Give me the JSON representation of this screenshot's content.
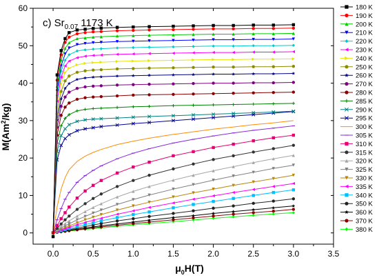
{
  "chart_data": {
    "type": "line",
    "annotation": {
      "prefix": "c) Sr",
      "subscript": "0.07",
      "suffix": " 1173 K"
    },
    "xlabel": {
      "pre": "μ",
      "sub": "0",
      "post": "H(T)"
    },
    "ylabel": {
      "pre": "M(Am",
      "sup": "2",
      "post": "/kg)"
    },
    "xlim": [
      -0.25,
      3.5
    ],
    "ylim": [
      -3,
      60
    ],
    "xticks": [
      "0.0",
      "0.5",
      "1.0",
      "1.5",
      "2.0",
      "2.5",
      "3.0",
      "3.5"
    ],
    "yticks": [
      "0",
      "10",
      "20",
      "30",
      "40",
      "50",
      "60"
    ],
    "legend_position": "right-outside",
    "x": [
      0,
      0.05,
      0.1,
      0.15,
      0.2,
      0.3,
      0.4,
      0.5,
      0.6,
      0.8,
      1.0,
      1.2,
      1.5,
      1.75,
      2.0,
      2.25,
      2.5,
      2.75,
      3.0
    ],
    "series": [
      {
        "name": "180 K",
        "color": "#000000",
        "marker": "square",
        "values": [
          -1,
          42.2,
          48.7,
          51.9,
          53.5,
          54.2,
          54.4,
          54.6,
          54.7,
          54.9,
          55.0,
          55.1,
          55.2,
          55.3,
          55.4,
          55.4,
          55.5,
          55.5,
          55.6
        ]
      },
      {
        "name": "190 K",
        "color": "#ff0000",
        "marker": "circle",
        "values": [
          0,
          40.8,
          47.6,
          50.9,
          52.3,
          53.2,
          53.5,
          53.7,
          53.8,
          54.0,
          54.1,
          54.2,
          54.3,
          54.4,
          54.5,
          54.5,
          54.6,
          54.6,
          54.7
        ]
      },
      {
        "name": "200 K",
        "color": "#00cc00",
        "marker": "triangle-up",
        "values": [
          0,
          39.2,
          46.2,
          49.3,
          50.8,
          51.9,
          52.1,
          52.3,
          52.4,
          52.6,
          52.7,
          52.8,
          52.9,
          53.0,
          53.1,
          53.1,
          53.2,
          53.2,
          53.3
        ]
      },
      {
        "name": "210 K",
        "color": "#0000ff",
        "marker": "triangle-down",
        "values": [
          0,
          37.9,
          44.6,
          47.8,
          49.4,
          50.3,
          50.6,
          50.8,
          50.9,
          51.1,
          51.2,
          51.3,
          51.4,
          51.5,
          51.6,
          51.6,
          51.7,
          51.7,
          51.8
        ]
      },
      {
        "name": "220 K",
        "color": "#00cccc",
        "marker": "diamond",
        "values": [
          0,
          36.7,
          43.2,
          46.1,
          47.6,
          48.6,
          48.9,
          49.1,
          49.2,
          49.4,
          49.5,
          49.6,
          49.7,
          49.8,
          49.9,
          49.9,
          50.0,
          50.0,
          50.1
        ]
      },
      {
        "name": "230 K",
        "color": "#ff00ff",
        "marker": "triangle-left",
        "values": [
          0,
          35.2,
          41.6,
          44.6,
          45.9,
          46.8,
          47.2,
          47.4,
          47.5,
          47.7,
          47.8,
          47.9,
          48.0,
          48.1,
          48.2,
          48.2,
          48.3,
          48.3,
          48.4
        ]
      },
      {
        "name": "240 K",
        "color": "#e6e600",
        "marker": "triangle-right",
        "values": [
          0,
          33.6,
          39.8,
          42.8,
          44.0,
          44.9,
          45.3,
          45.5,
          45.6,
          45.8,
          45.9,
          46.0,
          46.1,
          46.2,
          46.3,
          46.3,
          46.4,
          46.4,
          46.5
        ]
      },
      {
        "name": "250 K",
        "color": "#8b8b00",
        "marker": "circle",
        "values": [
          0,
          31.8,
          37.8,
          40.6,
          41.9,
          42.9,
          43.3,
          43.5,
          43.6,
          43.8,
          43.9,
          44.0,
          44.1,
          44.2,
          44.3,
          44.3,
          44.4,
          44.4,
          44.5
        ]
      },
      {
        "name": "260 K",
        "color": "#000080",
        "marker": "star",
        "values": [
          0,
          30.2,
          35.8,
          38.6,
          39.9,
          41.0,
          41.4,
          41.6,
          41.7,
          41.9,
          42.0,
          42.1,
          42.2,
          42.3,
          42.4,
          42.4,
          42.5,
          42.5,
          42.6
        ]
      },
      {
        "name": "270 K",
        "color": "#800080",
        "marker": "circle",
        "values": [
          0,
          28.2,
          33.8,
          36.3,
          37.6,
          38.6,
          39.0,
          39.2,
          39.3,
          39.5,
          39.6,
          39.7,
          39.8,
          39.9,
          40.0,
          40.0,
          40.1,
          40.1,
          40.2
        ]
      },
      {
        "name": "280 K",
        "color": "#8b0000",
        "marker": "circle",
        "values": [
          0,
          26.1,
          31.4,
          33.6,
          34.7,
          35.7,
          36.1,
          36.3,
          36.4,
          36.6,
          36.8,
          36.9,
          37.0,
          37.1,
          37.2,
          37.3,
          37.4,
          37.5,
          37.6
        ]
      },
      {
        "name": "285 K",
        "color": "#008000",
        "marker": "plus",
        "values": [
          0,
          24.0,
          28.6,
          30.6,
          31.6,
          32.6,
          33.0,
          33.2,
          33.3,
          33.5,
          33.7,
          33.8,
          34.0,
          34.1,
          34.2,
          34.3,
          34.4,
          34.5,
          34.6
        ]
      },
      {
        "name": "290 K",
        "color": "#008080",
        "marker": "cross",
        "values": [
          0,
          21.8,
          26.0,
          27.8,
          28.9,
          29.8,
          30.2,
          30.4,
          30.5,
          30.7,
          30.9,
          31.1,
          31.3,
          31.5,
          31.7,
          31.9,
          32.1,
          32.3,
          32.5
        ]
      },
      {
        "name": "295 K",
        "color": "#000099",
        "marker": "cross",
        "values": [
          0,
          19.5,
          23.4,
          25.2,
          26.2,
          27.3,
          27.8,
          28.1,
          28.4,
          28.8,
          29.2,
          29.5,
          30.0,
          30.4,
          30.8,
          31.2,
          31.6,
          32.0,
          32.4
        ]
      },
      {
        "name": "300 K",
        "color": "#ff8c00",
        "marker": "none",
        "values": [
          0,
          7.0,
          11.7,
          14.8,
          16.9,
          19.1,
          20.5,
          21.5,
          22.3,
          23.6,
          24.5,
          25.3,
          26.3,
          27.0,
          27.7,
          28.3,
          28.9,
          29.4,
          30.0
        ]
      },
      {
        "name": "305 K",
        "color": "#8a2be2",
        "marker": "dash",
        "values": [
          0,
          3.5,
          6.5,
          9.0,
          10.8,
          13.5,
          15.3,
          16.7,
          17.9,
          19.8,
          21.3,
          22.5,
          24.0,
          25.0,
          25.9,
          26.7,
          27.4,
          28.0,
          28.6
        ]
      },
      {
        "name": "310 K",
        "color": "#e60073",
        "marker": "square",
        "values": [
          0,
          2.0,
          3.8,
          5.4,
          6.9,
          9.3,
          11.2,
          12.7,
          14.0,
          16.0,
          17.6,
          18.9,
          20.6,
          21.7,
          22.8,
          23.7,
          24.6,
          25.4,
          26.1
        ]
      },
      {
        "name": "315 K",
        "color": "#333333",
        "marker": "circle",
        "values": [
          0,
          1.2,
          2.4,
          3.5,
          4.5,
          6.3,
          7.8,
          9.2,
          10.4,
          12.4,
          14.0,
          15.4,
          17.1,
          18.4,
          19.6,
          20.6,
          21.6,
          22.5,
          23.4
        ]
      },
      {
        "name": "320 K",
        "color": "#a6a6a6",
        "marker": "triangle-up",
        "values": [
          0,
          0.9,
          1.7,
          2.5,
          3.2,
          4.5,
          5.7,
          6.8,
          7.8,
          9.6,
          11.1,
          12.4,
          14.1,
          15.4,
          16.6,
          17.7,
          18.8,
          19.8,
          20.7
        ]
      },
      {
        "name": "325 K",
        "color": "#808080",
        "marker": "triangle-down",
        "values": [
          0,
          0.7,
          1.3,
          1.9,
          2.4,
          3.5,
          4.4,
          5.3,
          6.1,
          7.6,
          8.9,
          10.1,
          11.7,
          12.9,
          14.1,
          15.2,
          16.2,
          17.2,
          18.1
        ]
      },
      {
        "name": "330 K",
        "color": "#b8860b",
        "marker": "triangle-down",
        "values": [
          0,
          0.5,
          1.0,
          1.4,
          1.9,
          2.7,
          3.5,
          4.2,
          4.9,
          6.1,
          7.2,
          8.2,
          9.6,
          10.7,
          11.7,
          12.7,
          13.6,
          14.5,
          15.4
        ]
      },
      {
        "name": "335 K",
        "color": "#ff00ff",
        "marker": "triangle-left",
        "values": [
          0,
          0.4,
          0.8,
          1.1,
          1.5,
          2.2,
          2.8,
          3.4,
          3.9,
          5.0,
          5.9,
          6.8,
          8.0,
          9.0,
          9.9,
          10.8,
          11.6,
          12.4,
          13.2
        ]
      },
      {
        "name": "340 K",
        "color": "#00bfff",
        "marker": "square",
        "values": [
          0,
          0.3,
          0.6,
          0.9,
          1.2,
          1.7,
          2.2,
          2.7,
          3.2,
          4.1,
          4.9,
          5.6,
          6.7,
          7.6,
          8.4,
          9.2,
          10.0,
          10.8,
          11.5
        ]
      },
      {
        "name": "350 K",
        "color": "#222222",
        "marker": "circle",
        "values": [
          0,
          0.25,
          0.5,
          0.7,
          0.9,
          1.3,
          1.7,
          2.1,
          2.5,
          3.2,
          3.8,
          4.4,
          5.2,
          5.9,
          6.6,
          7.2,
          7.9,
          8.5,
          9.1
        ]
      },
      {
        "name": "360 K",
        "color": "#000000",
        "marker": "star",
        "values": [
          0,
          0.2,
          0.4,
          0.55,
          0.7,
          1.0,
          1.3,
          1.6,
          1.9,
          2.4,
          2.9,
          3.4,
          4.1,
          4.6,
          5.2,
          5.7,
          6.2,
          6.7,
          7.2
        ]
      },
      {
        "name": "370 K",
        "color": "#8b0000",
        "marker": "circle",
        "values": [
          0,
          0.15,
          0.3,
          0.45,
          0.6,
          0.85,
          1.1,
          1.35,
          1.6,
          2.05,
          2.5,
          2.9,
          3.5,
          4.0,
          4.5,
          5.0,
          5.4,
          5.8,
          6.3
        ]
      },
      {
        "name": "380 K",
        "color": "#00ff00",
        "marker": "diamond",
        "values": [
          0,
          0.12,
          0.25,
          0.37,
          0.5,
          0.72,
          0.94,
          1.15,
          1.35,
          1.75,
          2.15,
          2.5,
          3.0,
          3.45,
          3.9,
          4.3,
          4.7,
          5.05,
          5.4
        ]
      }
    ]
  }
}
